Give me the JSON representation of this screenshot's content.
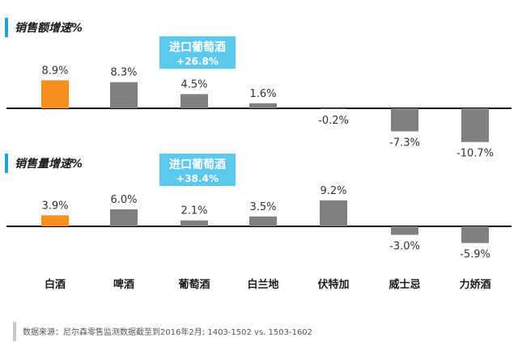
{
  "chart_data": [
    {
      "type": "bar",
      "title": "销售额增速%",
      "categories": [
        "白酒",
        "啤酒",
        "葡萄酒",
        "白兰地",
        "伏特加",
        "威士忌",
        "力娇酒"
      ],
      "values": [
        8.9,
        8.3,
        4.5,
        1.6,
        -0.2,
        -7.3,
        -10.7
      ],
      "value_labels": [
        "8.9%",
        "8.3%",
        "4.5%",
        "1.6%",
        "-0.2%",
        "-7.3%",
        "-10.7%"
      ],
      "highlight_index": 0,
      "callout": {
        "category_index": 2,
        "title": "进口葡萄酒",
        "value": "+26.8%"
      },
      "ylim": [
        -12,
        10
      ],
      "grid": false
    },
    {
      "type": "bar",
      "title": "销售量增速%",
      "categories": [
        "白酒",
        "啤酒",
        "葡萄酒",
        "白兰地",
        "伏特加",
        "威士忌",
        "力娇酒"
      ],
      "values": [
        3.9,
        6.0,
        2.1,
        3.5,
        9.2,
        -3.0,
        -5.9
      ],
      "value_labels": [
        "3.9%",
        "6.0%",
        "2.1%",
        "3.5%",
        "9.2%",
        "-3.0%",
        "-5.9%"
      ],
      "highlight_index": 0,
      "callout": {
        "category_index": 2,
        "title": "进口葡萄酒",
        "value": "+38.4%"
      },
      "ylim": [
        -7,
        10
      ],
      "grid": false
    }
  ],
  "footer": {
    "source": "数据来源：尼尔森零售监测数据截至到2016年2月; 1403-1502 vs. 1503-1602"
  },
  "colors": {
    "highlight": "#f7901e",
    "bar": "#808080",
    "accent": "#1aa3d9",
    "callout": "#5bc8ee",
    "axis": "#000000"
  }
}
